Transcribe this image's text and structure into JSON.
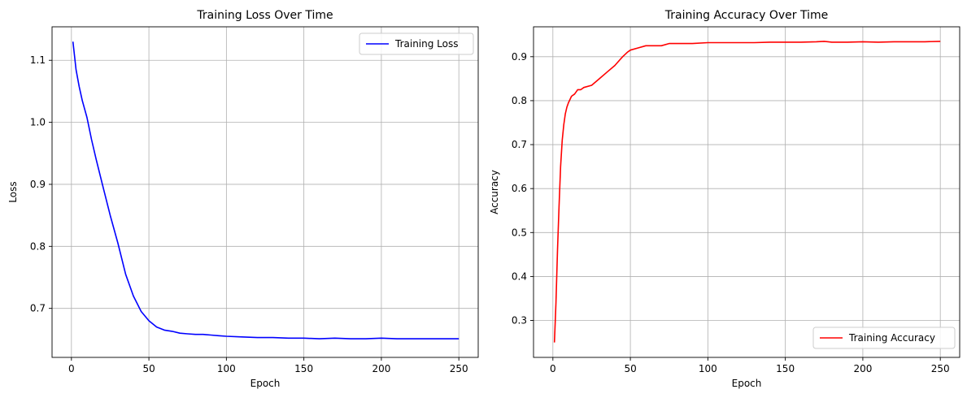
{
  "chart_data": [
    {
      "type": "line",
      "title": "Training Loss Over Time",
      "xlabel": "Epoch",
      "ylabel": "Loss",
      "xlim": [
        -12.5,
        262.5
      ],
      "ylim": [
        0.621,
        1.154
      ],
      "xticks": [
        0,
        50,
        100,
        150,
        200,
        250
      ],
      "xtick_labels": [
        "0",
        "50",
        "100",
        "150",
        "200",
        "250"
      ],
      "yticks": [
        0.7,
        0.8,
        0.9,
        1.0,
        1.1
      ],
      "ytick_labels": [
        "0.7",
        "0.8",
        "0.9",
        "1.0",
        "1.1"
      ],
      "grid": true,
      "legend_position": "top-right",
      "series": [
        {
          "name": "Training Loss",
          "color": "#0000ff",
          "x": [
            1,
            3,
            5,
            7,
            10,
            13,
            16,
            20,
            25,
            30,
            35,
            40,
            45,
            50,
            55,
            60,
            65,
            70,
            75,
            80,
            85,
            90,
            95,
            100,
            110,
            120,
            130,
            140,
            150,
            160,
            170,
            180,
            190,
            200,
            210,
            220,
            230,
            240,
            250
          ],
          "y": [
            1.13,
            1.085,
            1.058,
            1.035,
            1.008,
            0.972,
            0.94,
            0.9,
            0.85,
            0.805,
            0.755,
            0.72,
            0.695,
            0.68,
            0.67,
            0.665,
            0.663,
            0.66,
            0.659,
            0.658,
            0.658,
            0.657,
            0.656,
            0.655,
            0.654,
            0.653,
            0.653,
            0.652,
            0.652,
            0.651,
            0.652,
            0.651,
            0.651,
            0.652,
            0.651,
            0.651,
            0.651,
            0.651,
            0.651
          ]
        }
      ]
    },
    {
      "type": "line",
      "title": "Training Accuracy Over Time",
      "xlabel": "Epoch",
      "ylabel": "Accuracy",
      "xlim": [
        -12.5,
        262.5
      ],
      "ylim": [
        0.216,
        0.968
      ],
      "xticks": [
        0,
        50,
        100,
        150,
        200,
        250
      ],
      "xtick_labels": [
        "0",
        "50",
        "100",
        "150",
        "200",
        "250"
      ],
      "yticks": [
        0.3,
        0.4,
        0.5,
        0.6,
        0.7,
        0.8,
        0.9
      ],
      "ytick_labels": [
        "0.3",
        "0.4",
        "0.5",
        "0.6",
        "0.7",
        "0.8",
        "0.9"
      ],
      "grid": true,
      "legend_position": "bottom-right",
      "series": [
        {
          "name": "Training Accuracy",
          "color": "#ff0000",
          "x": [
            1,
            2,
            3,
            4,
            5,
            6,
            7,
            8,
            9,
            10,
            12,
            14,
            16,
            18,
            20,
            25,
            30,
            35,
            40,
            45,
            48,
            50,
            55,
            60,
            65,
            70,
            75,
            80,
            90,
            100,
            110,
            120,
            130,
            140,
            150,
            160,
            170,
            175,
            180,
            190,
            200,
            210,
            220,
            230,
            240,
            250
          ],
          "y": [
            0.25,
            0.34,
            0.46,
            0.56,
            0.65,
            0.71,
            0.745,
            0.77,
            0.785,
            0.795,
            0.81,
            0.815,
            0.825,
            0.825,
            0.83,
            0.835,
            0.85,
            0.865,
            0.88,
            0.9,
            0.91,
            0.915,
            0.92,
            0.925,
            0.925,
            0.925,
            0.93,
            0.93,
            0.93,
            0.932,
            0.932,
            0.932,
            0.932,
            0.933,
            0.933,
            0.933,
            0.934,
            0.935,
            0.933,
            0.933,
            0.934,
            0.933,
            0.934,
            0.934,
            0.934,
            0.935
          ]
        }
      ]
    }
  ]
}
